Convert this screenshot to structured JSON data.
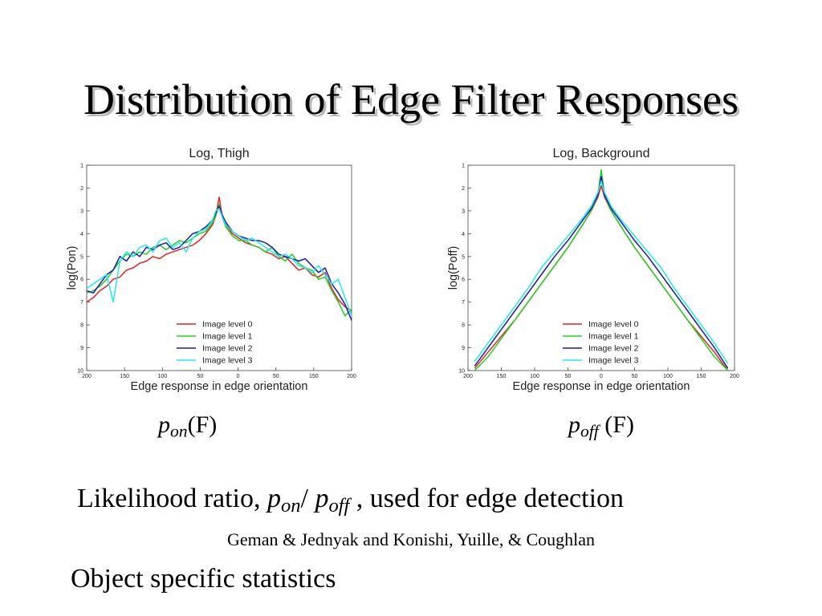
{
  "slide": {
    "title": "Distribution of Edge Filter Responses",
    "caption_left": {
      "p": "p",
      "sub": "on",
      "rest": "(F)"
    },
    "caption_right": {
      "p": "p",
      "sub": "off",
      "rest": " (F)"
    },
    "likelihood": {
      "prefix": "Likelihood ratio, ",
      "p1": "p",
      "sub1": "on",
      "slash": "/ ",
      "p2": "p",
      "sub2": "off",
      "suffix": " ,  used for edge detection"
    },
    "credits": "Geman & Jednyak and Konishi, Yuille, & Coughlan",
    "object_stats": "Object specific statistics"
  },
  "chart_data": [
    {
      "type": "line",
      "title": "Log, Thigh",
      "xlabel": "Edge response in edge orientation",
      "ylabel": "log(Pon)",
      "x_ticks": [
        "200",
        "150",
        "100",
        "50",
        "0",
        "50",
        "150",
        "200"
      ],
      "y_ticks": [
        "1",
        "2",
        "3",
        "4",
        "5",
        "6",
        "7",
        "8",
        "9",
        "10"
      ],
      "xlim": [
        -200,
        200
      ],
      "ylim": [
        1,
        10
      ],
      "y_inverted": true,
      "grid": false,
      "legend_position": "lower-right",
      "series": [
        {
          "name": "Image level 0",
          "color": "#e32222",
          "x": [
            -200,
            -190,
            -180,
            -170,
            -160,
            -150,
            -140,
            -130,
            -120,
            -110,
            -100,
            -90,
            -80,
            -70,
            -60,
            -50,
            -40,
            -30,
            -20,
            -10,
            -5,
            0,
            5,
            10,
            20,
            30,
            40,
            50,
            60,
            70,
            80,
            90,
            100,
            110,
            120,
            130,
            140,
            150,
            160,
            170,
            180,
            190,
            200
          ],
          "y": [
            7.0,
            6.8,
            6.5,
            6.3,
            6.0,
            5.9,
            5.6,
            5.5,
            5.3,
            5.2,
            5.0,
            5.1,
            4.9,
            4.8,
            4.7,
            4.6,
            4.5,
            4.3,
            4.0,
            3.6,
            3.2,
            2.4,
            3.3,
            3.6,
            4.0,
            4.2,
            4.4,
            4.5,
            4.6,
            4.8,
            4.9,
            5.1,
            5.0,
            5.3,
            5.6,
            5.5,
            5.8,
            5.9,
            5.7,
            6.4,
            6.9,
            7.2,
            7.4
          ]
        },
        {
          "name": "Image level 1",
          "color": "#22d022",
          "x": [
            -200,
            -190,
            -180,
            -170,
            -160,
            -150,
            -140,
            -130,
            -120,
            -110,
            -100,
            -90,
            -80,
            -70,
            -60,
            -50,
            -40,
            -30,
            -20,
            -10,
            -5,
            0,
            5,
            10,
            20,
            30,
            40,
            50,
            60,
            70,
            80,
            90,
            100,
            110,
            120,
            130,
            140,
            150,
            160,
            170,
            180,
            190,
            200
          ],
          "y": [
            6.6,
            6.5,
            6.3,
            6.0,
            5.6,
            5.2,
            4.9,
            5.0,
            4.8,
            4.9,
            4.6,
            4.5,
            4.7,
            4.5,
            4.3,
            4.4,
            4.2,
            4.0,
            3.9,
            3.5,
            3.2,
            2.7,
            3.3,
            3.7,
            4.1,
            4.3,
            4.3,
            4.5,
            4.6,
            4.8,
            4.6,
            5.0,
            5.2,
            4.9,
            5.3,
            5.5,
            5.6,
            6.0,
            5.9,
            6.5,
            7.0,
            7.6,
            7.3
          ]
        },
        {
          "name": "Image level 2",
          "color": "#1a1aa8",
          "x": [
            -200,
            -190,
            -180,
            -170,
            -160,
            -150,
            -140,
            -130,
            -120,
            -110,
            -100,
            -90,
            -80,
            -70,
            -60,
            -50,
            -40,
            -30,
            -20,
            -10,
            -5,
            0,
            5,
            10,
            20,
            30,
            40,
            50,
            60,
            70,
            80,
            90,
            100,
            110,
            120,
            130,
            140,
            150,
            160,
            170,
            180,
            190,
            200
          ],
          "y": [
            6.5,
            6.6,
            6.2,
            5.8,
            5.6,
            5.0,
            5.2,
            4.8,
            5.0,
            4.6,
            4.7,
            4.5,
            4.4,
            4.7,
            4.6,
            4.3,
            4.0,
            3.9,
            3.7,
            3.4,
            3.1,
            2.8,
            3.2,
            3.5,
            3.9,
            4.1,
            4.2,
            4.3,
            4.3,
            4.4,
            4.6,
            4.9,
            5.0,
            5.1,
            5.2,
            5.1,
            5.4,
            5.7,
            5.5,
            6.2,
            6.6,
            7.1,
            7.8
          ]
        },
        {
          "name": "Image level 3",
          "color": "#22e8ee",
          "x": [
            -200,
            -190,
            -180,
            -170,
            -160,
            -150,
            -140,
            -130,
            -120,
            -110,
            -100,
            -90,
            -80,
            -70,
            -60,
            -50,
            -40,
            -30,
            -20,
            -10,
            -5,
            0,
            5,
            10,
            20,
            30,
            40,
            50,
            60,
            70,
            80,
            90,
            100,
            110,
            120,
            130,
            140,
            150,
            160,
            170,
            180,
            190,
            200
          ],
          "y": [
            6.4,
            6.2,
            6.0,
            5.8,
            7.0,
            5.2,
            4.8,
            5.0,
            4.6,
            4.5,
            4.8,
            4.3,
            4.2,
            4.6,
            4.4,
            4.8,
            4.2,
            3.9,
            3.8,
            3.4,
            3.0,
            2.9,
            3.3,
            3.6,
            3.9,
            4.1,
            4.3,
            4.2,
            4.4,
            4.6,
            4.8,
            5.0,
            4.9,
            5.1,
            5.4,
            5.5,
            5.7,
            5.4,
            5.8,
            6.2,
            6.0,
            6.8,
            7.6
          ]
        }
      ]
    },
    {
      "type": "line",
      "title": "Log, Background",
      "xlabel": "Edge response in edge orientation",
      "ylabel": "log(Poff)",
      "x_ticks": [
        "200",
        "150",
        "100",
        "50",
        "0",
        "50",
        "100",
        "150",
        "200"
      ],
      "y_ticks": [
        "1",
        "2",
        "3",
        "4",
        "5",
        "6",
        "7",
        "8",
        "9",
        "10"
      ],
      "xlim": [
        -200,
        200
      ],
      "ylim": [
        1,
        10
      ],
      "y_inverted": true,
      "grid": false,
      "legend_position": "lower-right",
      "series": [
        {
          "name": "Image level 0",
          "color": "#e32222",
          "x": [
            -190,
            -170,
            -150,
            -130,
            -110,
            -90,
            -70,
            -50,
            -30,
            -15,
            -5,
            0,
            5,
            15,
            30,
            50,
            70,
            90,
            110,
            130,
            150,
            170,
            190
          ],
          "y": [
            9.9,
            9.2,
            8.5,
            7.8,
            7.0,
            6.2,
            5.4,
            4.6,
            3.7,
            3.0,
            2.4,
            1.9,
            2.4,
            3.0,
            3.7,
            4.6,
            5.4,
            6.2,
            7.0,
            7.8,
            8.5,
            9.2,
            10.0
          ]
        },
        {
          "name": "Image level 1",
          "color": "#22d022",
          "x": [
            -190,
            -170,
            -150,
            -130,
            -110,
            -90,
            -70,
            -50,
            -30,
            -15,
            -5,
            0,
            5,
            15,
            30,
            50,
            70,
            90,
            110,
            130,
            150,
            170,
            190
          ],
          "y": [
            10.0,
            9.4,
            8.6,
            7.8,
            7.0,
            6.2,
            5.4,
            4.6,
            3.7,
            3.0,
            2.3,
            1.2,
            2.3,
            3.0,
            3.7,
            4.6,
            5.4,
            6.2,
            7.0,
            7.8,
            8.6,
            9.4,
            10.0
          ]
        },
        {
          "name": "Image level 2",
          "color": "#1a1aa8",
          "x": [
            -190,
            -170,
            -150,
            -130,
            -110,
            -90,
            -70,
            -50,
            -30,
            -15,
            -5,
            0,
            5,
            15,
            30,
            50,
            70,
            90,
            110,
            130,
            150,
            170,
            190
          ],
          "y": [
            9.8,
            9.0,
            8.2,
            7.4,
            6.6,
            5.8,
            5.0,
            4.3,
            3.5,
            2.9,
            2.3,
            1.5,
            2.3,
            2.9,
            3.5,
            4.3,
            5.0,
            5.8,
            6.6,
            7.4,
            8.2,
            9.0,
            9.9
          ]
        },
        {
          "name": "Image level 3",
          "color": "#22e8ee",
          "x": [
            -190,
            -170,
            -150,
            -130,
            -110,
            -90,
            -70,
            -50,
            -30,
            -15,
            -5,
            0,
            5,
            15,
            30,
            50,
            70,
            90,
            110,
            130,
            150,
            170,
            190
          ],
          "y": [
            9.6,
            8.8,
            8.0,
            7.2,
            6.4,
            5.5,
            4.8,
            4.1,
            3.4,
            2.8,
            2.2,
            1.7,
            2.2,
            2.8,
            3.4,
            4.1,
            4.8,
            5.5,
            6.4,
            7.2,
            8.0,
            8.8,
            9.7
          ]
        }
      ]
    }
  ]
}
